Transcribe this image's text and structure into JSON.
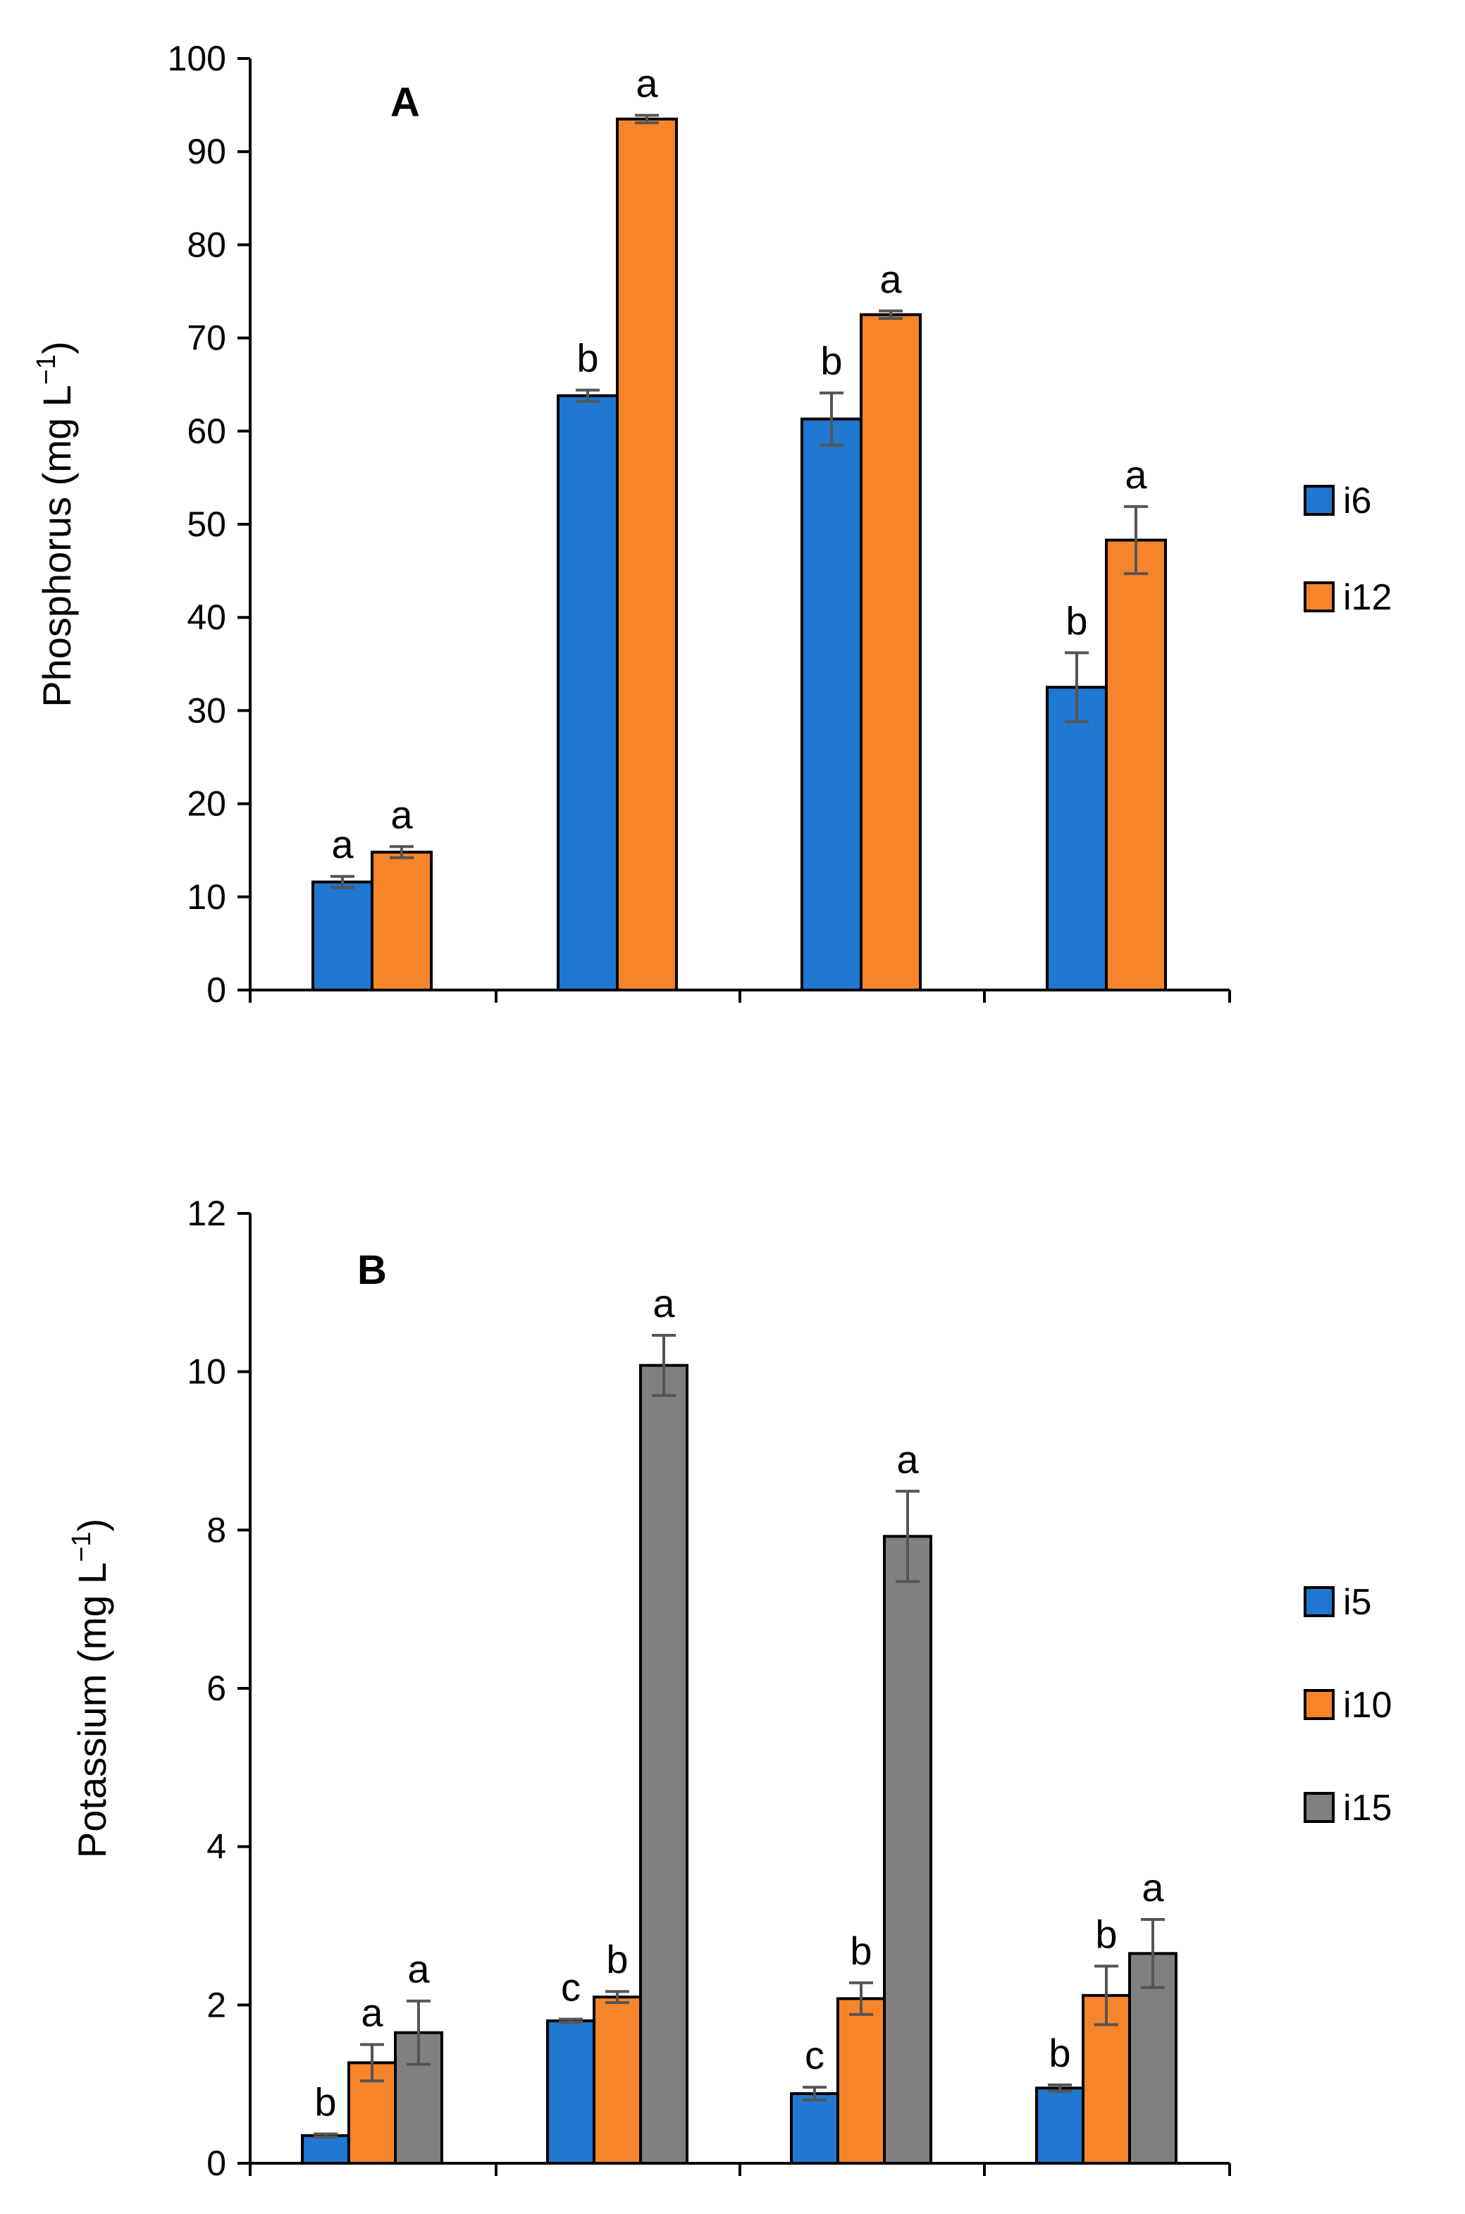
{
  "colors": {
    "blue": "#1f77d0",
    "orange": "#f6842a",
    "gray": "#808080",
    "axis": "#000000",
    "error_bar": "#555555"
  },
  "chart_data": [
    {
      "type": "bar",
      "panel": "A",
      "title": "",
      "xlabel": "",
      "ylabel": "Phosphorus (mg L−1)",
      "ylim": [
        0,
        100
      ],
      "yticks": [
        "0",
        "10",
        "20",
        "30",
        "40",
        "50",
        "60",
        "70",
        "80",
        "90",
        "100"
      ],
      "categories": [
        "",
        "",
        "",
        ""
      ],
      "legend_position": "right",
      "grid": false,
      "series": [
        {
          "name": "i6",
          "color": "#1f77d0",
          "values": [
            11.6,
            63.8,
            61.3,
            32.5
          ],
          "errors": [
            0.6,
            0.6,
            2.8,
            3.7
          ],
          "letters": [
            "a",
            "b",
            "b",
            "b"
          ]
        },
        {
          "name": "i12",
          "color": "#f6842a",
          "values": [
            14.8,
            93.5,
            72.5,
            48.3
          ],
          "errors": [
            0.6,
            0.4,
            0.4,
            3.6
          ],
          "letters": [
            "a",
            "a",
            "a",
            "a"
          ]
        }
      ]
    },
    {
      "type": "bar",
      "panel": "B",
      "title": "",
      "xlabel": "",
      "ylabel": "Potassium (mg L−1)",
      "ylim": [
        0,
        12
      ],
      "yticks": [
        "0",
        "2",
        "4",
        "6",
        "8",
        "10",
        "12"
      ],
      "categories": [
        "",
        "",
        "",
        ""
      ],
      "legend_position": "right",
      "grid": false,
      "series": [
        {
          "name": "i5",
          "color": "#1f77d0",
          "values": [
            0.35,
            1.8,
            0.88,
            0.95
          ],
          "errors": [
            0.02,
            0.02,
            0.08,
            0.04
          ],
          "letters": [
            "b",
            "c",
            "c",
            "b"
          ]
        },
        {
          "name": "i10",
          "color": "#f6842a",
          "values": [
            1.27,
            2.1,
            2.08,
            2.12
          ],
          "errors": [
            0.23,
            0.07,
            0.2,
            0.37
          ],
          "letters": [
            "a",
            "b",
            "b",
            "b"
          ]
        },
        {
          "name": "i15",
          "color": "#808080",
          "values": [
            1.65,
            10.08,
            7.92,
            2.65
          ],
          "errors": [
            0.4,
            0.38,
            0.57,
            0.43
          ],
          "letters": [
            "a",
            "a",
            "a",
            "a"
          ]
        }
      ]
    }
  ]
}
